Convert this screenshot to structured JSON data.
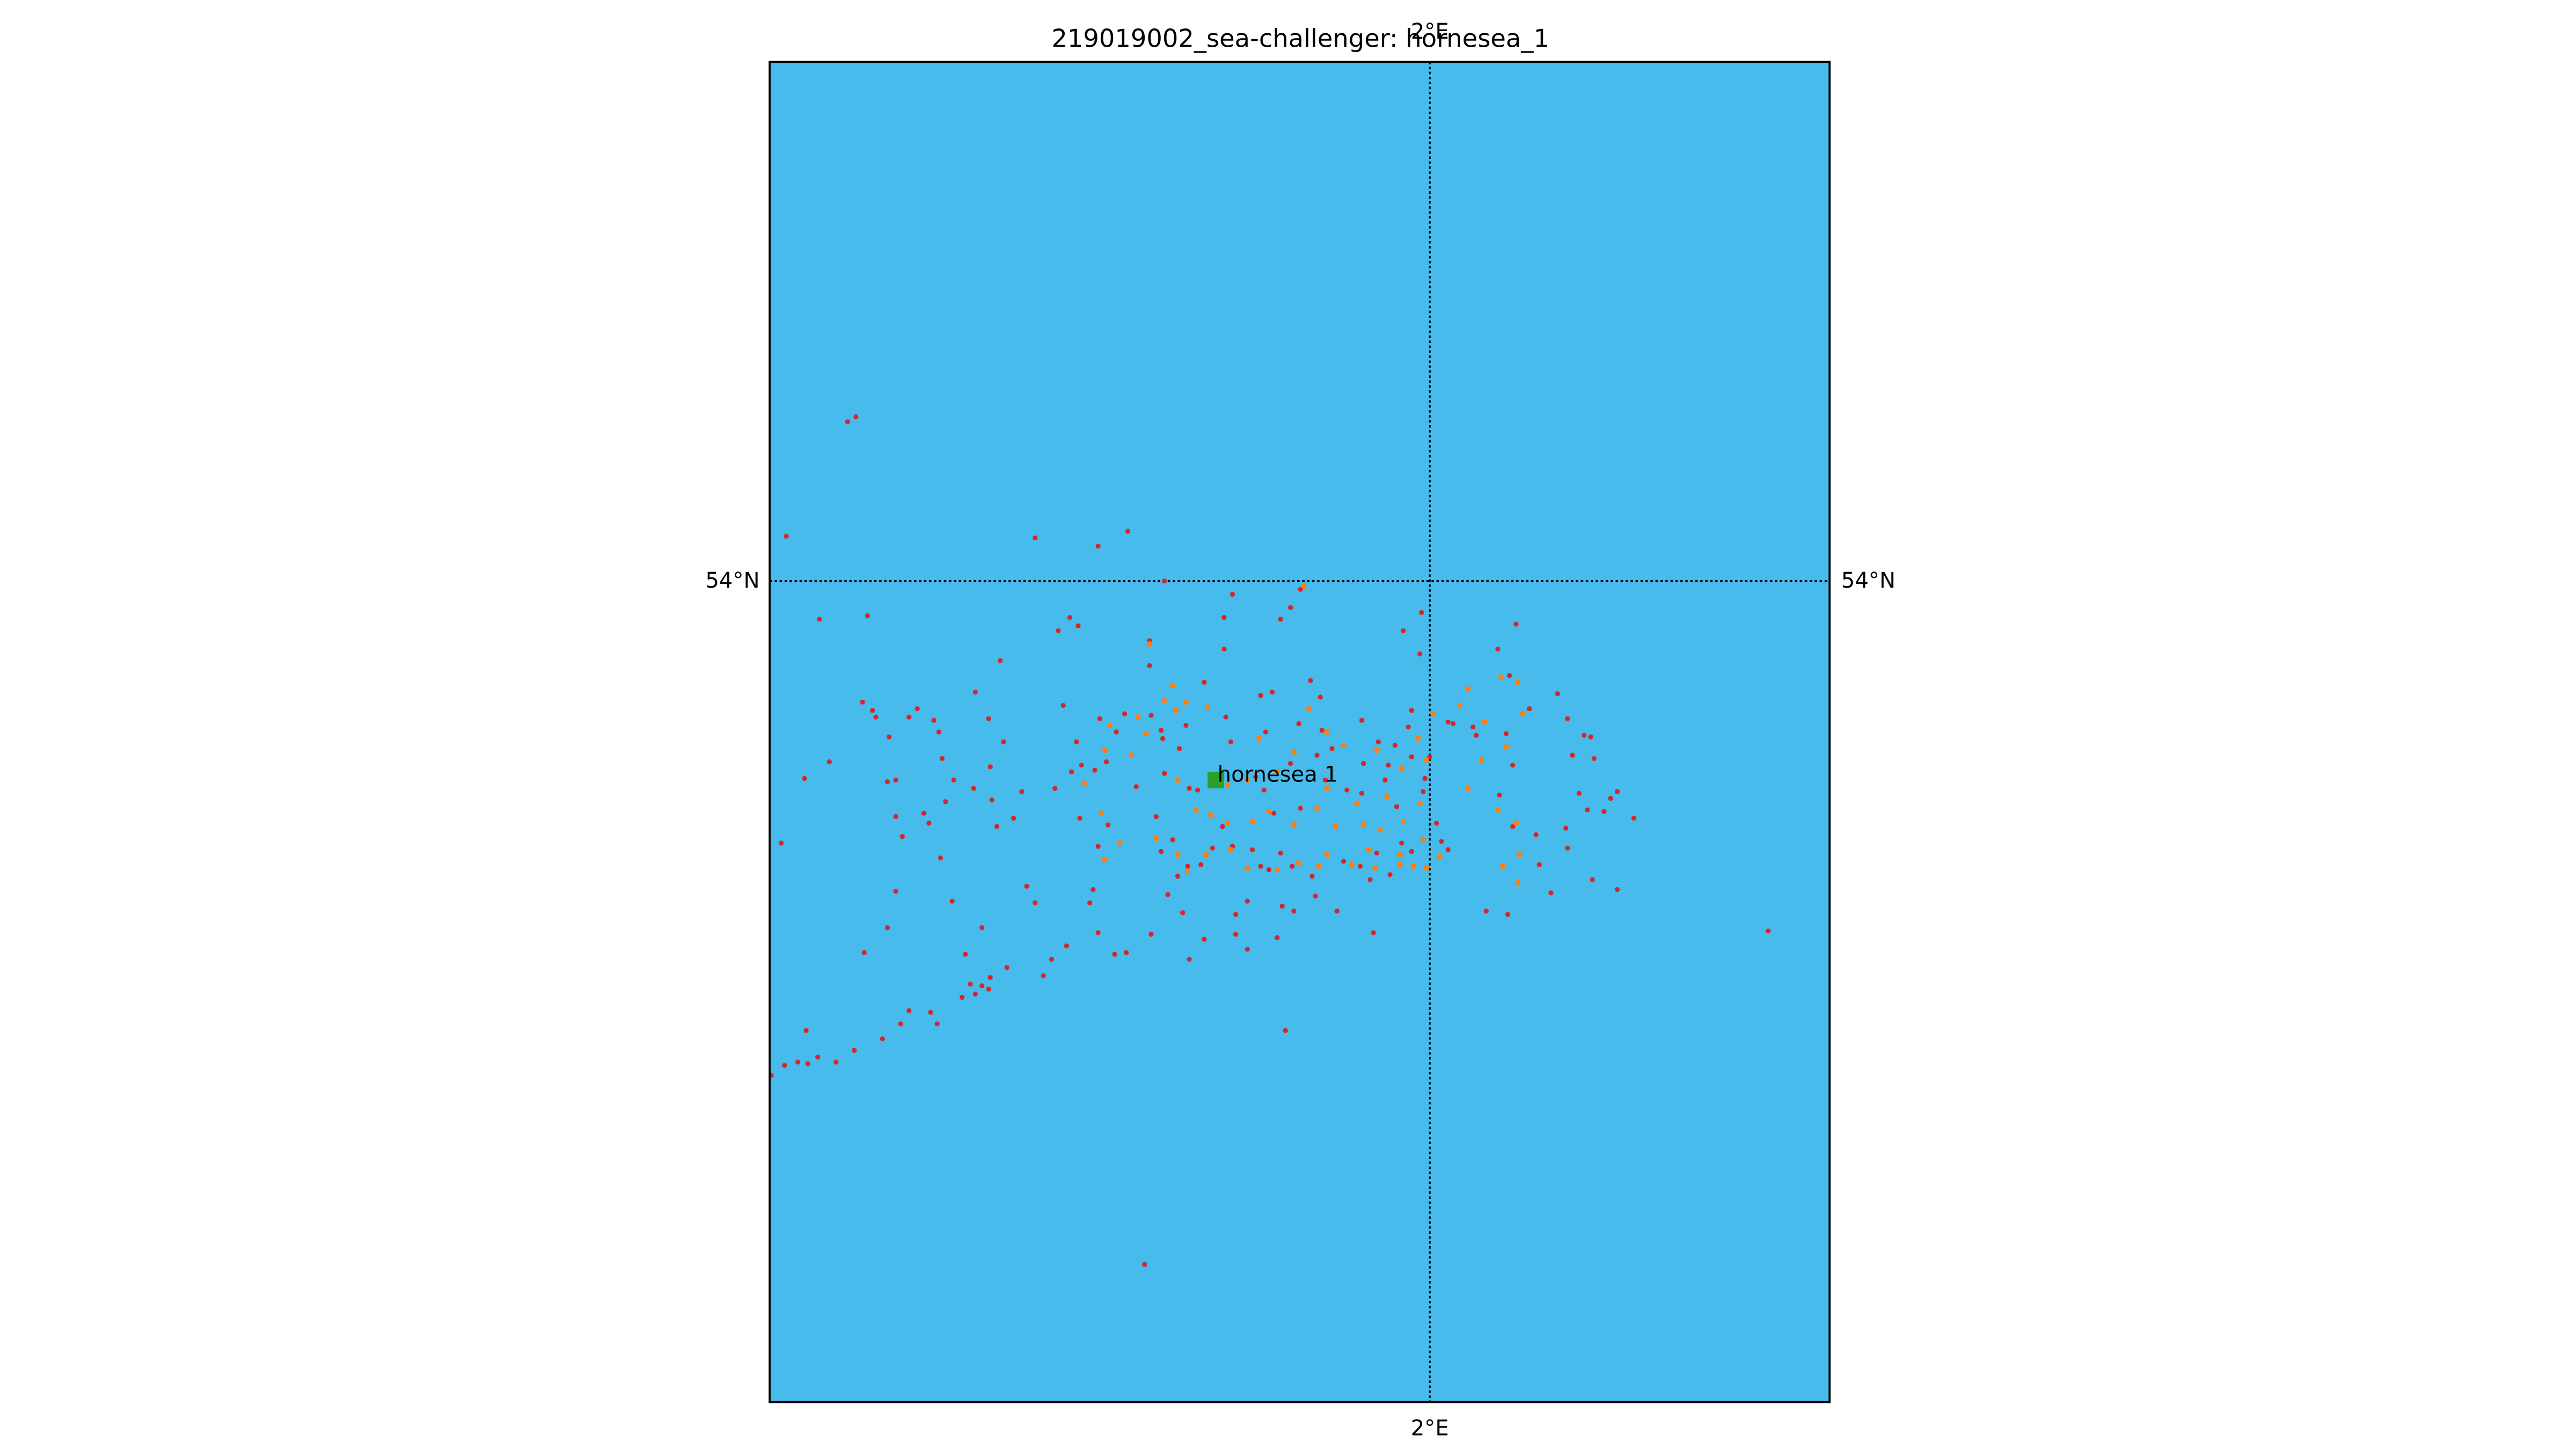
{
  "title": "219019002_sea-challenger: hornesea_1",
  "map": {
    "water_color": "#47bbec",
    "frame_color": "#000000",
    "grid_style": "dotted",
    "meridian_label": "2°E",
    "parallel_label": "54°N"
  },
  "site": {
    "label": "hornesea 1",
    "marker_color": "#2ca02c",
    "marker_shape": "square"
  },
  "track_points": {
    "primary_color": "#d62728",
    "secondary_color": "#ff7f0e"
  }
}
